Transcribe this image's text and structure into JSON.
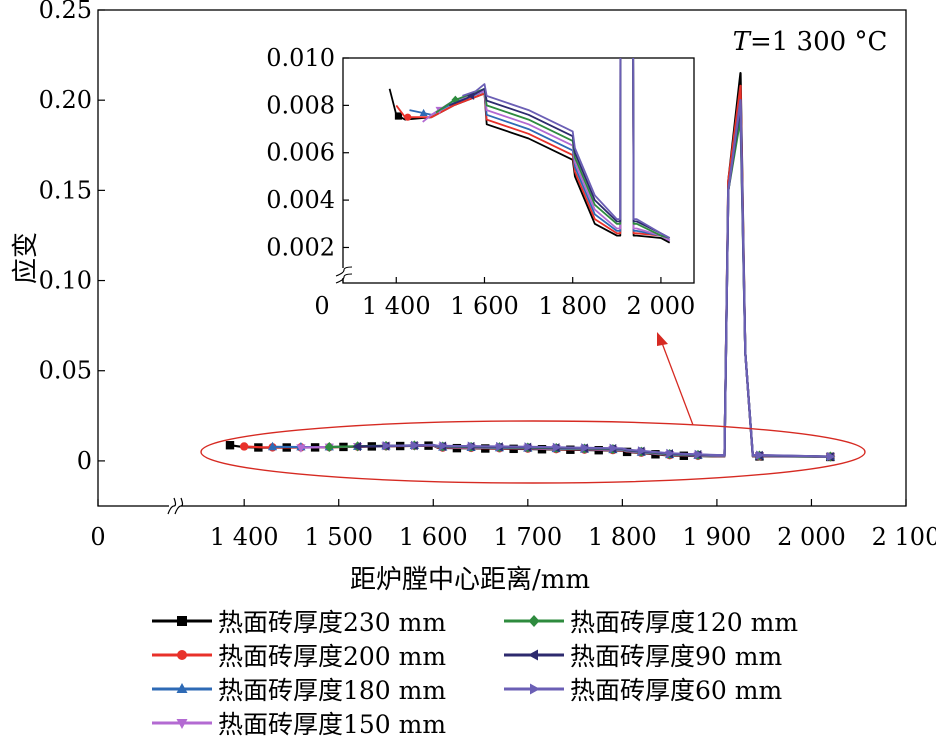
{
  "chart_data": {
    "type": "line",
    "annotation_condition": {
      "italic_var": "T",
      "value_text": "=1 300 °C"
    },
    "main": {
      "xlabel": "距炉膛中心距离/mm",
      "ylabel": "应变",
      "x_ticks": [
        0,
        1400,
        1500,
        1600,
        1700,
        1800,
        1900,
        2000,
        2100
      ],
      "x_tick_labels": [
        "0",
        "1 400",
        "1 500",
        "1 600",
        "1 700",
        "1 800",
        "1 900",
        "2 000",
        "2 100"
      ],
      "y_ticks": [
        0,
        0.05,
        0.1,
        0.15,
        0.2,
        0.25
      ],
      "y_tick_labels": [
        "0",
        "0.05",
        "0.10",
        "0.15",
        "0.20",
        "0.25"
      ],
      "xlim": [
        1330,
        2100
      ],
      "ylim": [
        -0.025,
        0.25
      ],
      "axis_break": true
    },
    "inset": {
      "x_ticks": [
        0,
        1400,
        1600,
        1800,
        2000
      ],
      "x_tick_labels": [
        "0",
        "1 400",
        "1 600",
        "1 800",
        "2 000"
      ],
      "y_ticks": [
        0.002,
        0.004,
        0.006,
        0.008,
        0.01
      ],
      "y_tick_labels": [
        "0.002",
        "0.004",
        "0.006",
        "0.008",
        "0.010"
      ],
      "xlim": [
        1345,
        2075
      ],
      "ylim": [
        0.0005,
        0.01
      ],
      "axis_break": true
    },
    "series": [
      {
        "name": "热面砖厚度230 mm",
        "color": "#000000",
        "marker": "square",
        "start": 1385,
        "x": [
          1385,
          1400,
          1420,
          1480,
          1530,
          1600,
          1605,
          1700,
          1800,
          1805,
          1850,
          1900,
          1908,
          1912,
          1925,
          1930,
          1938,
          1945,
          2000,
          2020
        ],
        "y": [
          0.0087,
          0.0076,
          0.0074,
          0.0075,
          0.008,
          0.0085,
          0.0072,
          0.0066,
          0.0057,
          0.005,
          0.003,
          0.0025,
          0.0025,
          0.155,
          0.215,
          0.06,
          0.0025,
          0.0025,
          0.0024,
          0.0022
        ]
      },
      {
        "name": "热面砖厚度200 mm",
        "color": "#e8312a",
        "marker": "circle",
        "start": 1400,
        "x": [
          1400,
          1420,
          1480,
          1530,
          1600,
          1605,
          1700,
          1800,
          1805,
          1850,
          1900,
          1908,
          1912,
          1925,
          1930,
          1938,
          1945,
          2000,
          2020
        ],
        "y": [
          0.008,
          0.0075,
          0.0075,
          0.008,
          0.0085,
          0.0074,
          0.0068,
          0.0059,
          0.0052,
          0.0032,
          0.0026,
          0.0026,
          0.155,
          0.208,
          0.06,
          0.0026,
          0.0026,
          0.0025,
          0.0023
        ]
      },
      {
        "name": "热面砖厚度180 mm",
        "color": "#2e6ab5",
        "marker": "triangle-up",
        "start": 1430,
        "x": [
          1430,
          1480,
          1530,
          1600,
          1605,
          1700,
          1800,
          1805,
          1850,
          1900,
          1908,
          1912,
          1925,
          1930,
          1938,
          1945,
          2000,
          2020
        ],
        "y": [
          0.0078,
          0.0076,
          0.0081,
          0.0086,
          0.0076,
          0.007,
          0.0061,
          0.0054,
          0.0034,
          0.0027,
          0.0027,
          0.15,
          0.2,
          0.06,
          0.0027,
          0.0027,
          0.0025,
          0.0023
        ]
      },
      {
        "name": "热面砖厚度150 mm",
        "color": "#b36ad2",
        "marker": "triangle-down",
        "start": 1460,
        "x": [
          1460,
          1480,
          1530,
          1600,
          1605,
          1700,
          1800,
          1805,
          1850,
          1900,
          1908,
          1912,
          1925,
          1930,
          1938,
          1945,
          2000,
          2020
        ],
        "y": [
          0.0073,
          0.0076,
          0.0082,
          0.0086,
          0.0078,
          0.0072,
          0.0063,
          0.0056,
          0.0036,
          0.0028,
          0.0028,
          0.15,
          0.195,
          0.06,
          0.0028,
          0.0028,
          0.0025,
          0.0023
        ]
      },
      {
        "name": "热面砖厚度120 mm",
        "color": "#2e8b3e",
        "marker": "diamond",
        "start": 1490,
        "x": [
          1490,
          1530,
          1600,
          1605,
          1700,
          1800,
          1805,
          1850,
          1900,
          1908,
          1912,
          1925,
          1930,
          1938,
          1945,
          2000,
          2020
        ],
        "y": [
          0.0077,
          0.0082,
          0.0087,
          0.008,
          0.0074,
          0.0065,
          0.0058,
          0.0038,
          0.003,
          0.003,
          0.15,
          0.19,
          0.06,
          0.003,
          0.003,
          0.0025,
          0.0024
        ]
      },
      {
        "name": "热面砖厚度90 mm",
        "color": "#2d2a6e",
        "marker": "triangle-left",
        "start": 1520,
        "x": [
          1520,
          1560,
          1600,
          1605,
          1700,
          1800,
          1805,
          1850,
          1900,
          1908,
          1912,
          1925,
          1930,
          1938,
          1945,
          2000,
          2020
        ],
        "y": [
          0.008,
          0.0083,
          0.0087,
          0.0082,
          0.0076,
          0.0067,
          0.006,
          0.004,
          0.0031,
          0.0031,
          0.15,
          0.197,
          0.06,
          0.0031,
          0.0031,
          0.0026,
          0.0024
        ]
      },
      {
        "name": "热面砖厚度60 mm",
        "color": "#6b5fb5",
        "marker": "triangle-right",
        "start": 1550,
        "x": [
          1550,
          1580,
          1600,
          1605,
          1700,
          1800,
          1805,
          1850,
          1900,
          1908,
          1912,
          1925,
          1930,
          1938,
          1945,
          2000,
          2020
        ],
        "y": [
          0.0084,
          0.0086,
          0.0089,
          0.0084,
          0.0078,
          0.0069,
          0.0062,
          0.0042,
          0.0032,
          0.0032,
          0.15,
          0.2,
          0.06,
          0.0032,
          0.0032,
          0.0026,
          0.0024
        ]
      }
    ]
  }
}
